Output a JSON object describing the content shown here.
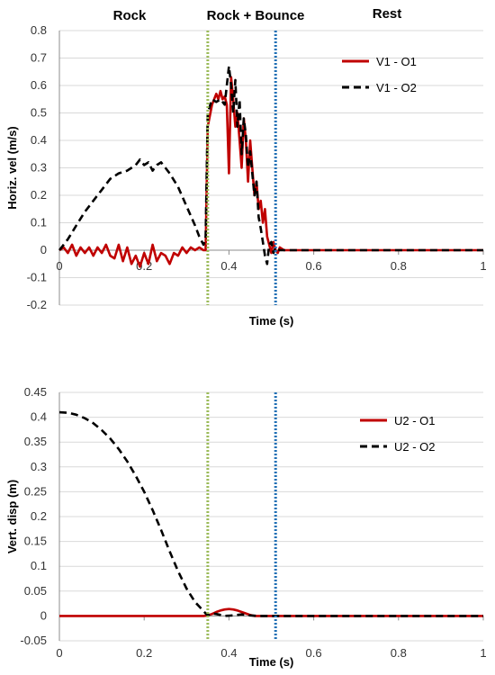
{
  "phase_labels": [
    "Rock",
    "Rock + Bounce",
    "Rest"
  ],
  "chart_data": [
    {
      "type": "line",
      "xlabel": "Time (s)",
      "ylabel": "Horiz. vel (m/s)",
      "xlim": [
        0,
        1
      ],
      "ylim": [
        -0.2,
        0.8
      ],
      "x_ticks": [
        "0",
        "0.2",
        "0.4",
        "0.6",
        "0.8",
        "1"
      ],
      "y_ticks": [
        "-0.2",
        "-0.1",
        "0",
        "0.1",
        "0.2",
        "0.3",
        "0.4",
        "0.5",
        "0.6",
        "0.7",
        "0.8"
      ],
      "grid": true,
      "legend": "top-right",
      "vertical_markers": [
        {
          "x": 0.35,
          "color": "#9bbb59"
        },
        {
          "x": 0.51,
          "color": "#1f6fb5"
        }
      ],
      "series": [
        {
          "name": "V1 - O1",
          "color": "#c00000",
          "dash": "solid",
          "points": [
            [
              0,
              0
            ],
            [
              0.01,
              0.01
            ],
            [
              0.02,
              -0.01
            ],
            [
              0.03,
              0.02
            ],
            [
              0.04,
              -0.02
            ],
            [
              0.05,
              0.01
            ],
            [
              0.06,
              -0.01
            ],
            [
              0.07,
              0.01
            ],
            [
              0.08,
              -0.02
            ],
            [
              0.09,
              0.01
            ],
            [
              0.1,
              -0.01
            ],
            [
              0.11,
              0.02
            ],
            [
              0.12,
              -0.02
            ],
            [
              0.13,
              -0.03
            ],
            [
              0.14,
              0.02
            ],
            [
              0.15,
              -0.04
            ],
            [
              0.16,
              0.01
            ],
            [
              0.17,
              -0.05
            ],
            [
              0.18,
              -0.02
            ],
            [
              0.19,
              -0.06
            ],
            [
              0.2,
              -0.01
            ],
            [
              0.21,
              -0.05
            ],
            [
              0.22,
              0.02
            ],
            [
              0.23,
              -0.04
            ],
            [
              0.24,
              -0.01
            ],
            [
              0.25,
              -0.02
            ],
            [
              0.26,
              -0.05
            ],
            [
              0.27,
              -0.01
            ],
            [
              0.28,
              -0.02
            ],
            [
              0.29,
              0.01
            ],
            [
              0.3,
              -0.01
            ],
            [
              0.31,
              0.01
            ],
            [
              0.32,
              0
            ],
            [
              0.33,
              0.01
            ],
            [
              0.34,
              0
            ],
            [
              0.345,
              0
            ],
            [
              0.35,
              0.45
            ],
            [
              0.36,
              0.53
            ],
            [
              0.37,
              0.57
            ],
            [
              0.375,
              0.55
            ],
            [
              0.38,
              0.58
            ],
            [
              0.385,
              0.55
            ],
            [
              0.39,
              0.56
            ],
            [
              0.395,
              0.53
            ],
            [
              0.4,
              0.28
            ],
            [
              0.405,
              0.63
            ],
            [
              0.41,
              0.55
            ],
            [
              0.415,
              0.45
            ],
            [
              0.42,
              0.5
            ],
            [
              0.425,
              0.4
            ],
            [
              0.43,
              0.3
            ],
            [
              0.435,
              0.48
            ],
            [
              0.44,
              0.4
            ],
            [
              0.445,
              0.25
            ],
            [
              0.45,
              0.4
            ],
            [
              0.455,
              0.3
            ],
            [
              0.46,
              0.2
            ],
            [
              0.465,
              0.25
            ],
            [
              0.47,
              0.15
            ],
            [
              0.475,
              0.18
            ],
            [
              0.48,
              0.1
            ],
            [
              0.485,
              0.15
            ],
            [
              0.49,
              0.05
            ],
            [
              0.5,
              -0.01
            ],
            [
              0.505,
              0.03
            ],
            [
              0.51,
              0
            ],
            [
              0.515,
              -0.01
            ],
            [
              0.52,
              0.01
            ],
            [
              0.53,
              0
            ],
            [
              1,
              0
            ]
          ]
        },
        {
          "name": "V1 - O2",
          "color": "#000000",
          "dash": "dashed",
          "points": [
            [
              0,
              0
            ],
            [
              0.02,
              0.04
            ],
            [
              0.04,
              0.09
            ],
            [
              0.06,
              0.14
            ],
            [
              0.08,
              0.18
            ],
            [
              0.1,
              0.22
            ],
            [
              0.12,
              0.26
            ],
            [
              0.14,
              0.28
            ],
            [
              0.16,
              0.29
            ],
            [
              0.18,
              0.31
            ],
            [
              0.19,
              0.33
            ],
            [
              0.2,
              0.31
            ],
            [
              0.21,
              0.32
            ],
            [
              0.22,
              0.29
            ],
            [
              0.23,
              0.31
            ],
            [
              0.24,
              0.32
            ],
            [
              0.25,
              0.3
            ],
            [
              0.26,
              0.28
            ],
            [
              0.28,
              0.23
            ],
            [
              0.3,
              0.16
            ],
            [
              0.32,
              0.09
            ],
            [
              0.33,
              0.05
            ],
            [
              0.34,
              0.02
            ],
            [
              0.345,
              0.05
            ],
            [
              0.35,
              0.5
            ],
            [
              0.36,
              0.55
            ],
            [
              0.37,
              0.54
            ],
            [
              0.38,
              0.55
            ],
            [
              0.39,
              0.53
            ],
            [
              0.395,
              0.6
            ],
            [
              0.4,
              0.67
            ],
            [
              0.405,
              0.6
            ],
            [
              0.41,
              0.5
            ],
            [
              0.415,
              0.62
            ],
            [
              0.42,
              0.45
            ],
            [
              0.425,
              0.55
            ],
            [
              0.43,
              0.35
            ],
            [
              0.435,
              0.48
            ],
            [
              0.44,
              0.42
            ],
            [
              0.445,
              0.3
            ],
            [
              0.45,
              0.36
            ],
            [
              0.455,
              0.28
            ],
            [
              0.46,
              0.2
            ],
            [
              0.465,
              0.25
            ],
            [
              0.47,
              0.12
            ],
            [
              0.475,
              0.08
            ],
            [
              0.48,
              0.03
            ],
            [
              0.485,
              -0.02
            ],
            [
              0.49,
              -0.05
            ],
            [
              0.495,
              0.02
            ],
            [
              0.5,
              0.03
            ],
            [
              0.505,
              -0.01
            ],
            [
              0.51,
              0.01
            ],
            [
              0.52,
              0
            ],
            [
              1,
              0
            ]
          ]
        }
      ]
    },
    {
      "type": "line",
      "xlabel": "Time (s)",
      "ylabel": "Vert. disp (m)",
      "xlim": [
        0,
        1
      ],
      "ylim": [
        -0.05,
        0.45
      ],
      "x_ticks": [
        "0",
        "0.2",
        "0.4",
        "0.6",
        "0.8",
        "1"
      ],
      "y_ticks": [
        "-0.05",
        "0",
        "0.05",
        "0.1",
        "0.15",
        "0.2",
        "0.25",
        "0.3",
        "0.35",
        "0.4",
        "0.45"
      ],
      "grid": true,
      "legend": "top-right",
      "vertical_markers": [
        {
          "x": 0.35,
          "color": "#9bbb59"
        },
        {
          "x": 0.51,
          "color": "#1f6fb5"
        }
      ],
      "series": [
        {
          "name": "U2 - O1",
          "color": "#c00000",
          "dash": "solid",
          "points": [
            [
              0,
              0
            ],
            [
              0.34,
              0
            ],
            [
              0.35,
              0.001
            ],
            [
              0.36,
              0.004
            ],
            [
              0.37,
              0.008
            ],
            [
              0.38,
              0.011
            ],
            [
              0.39,
              0.013
            ],
            [
              0.4,
              0.014
            ],
            [
              0.41,
              0.013
            ],
            [
              0.42,
              0.011
            ],
            [
              0.43,
              0.008
            ],
            [
              0.44,
              0.005
            ],
            [
              0.45,
              0.002
            ],
            [
              0.46,
              0
            ],
            [
              1,
              0
            ]
          ]
        },
        {
          "name": "U2 - O2",
          "color": "#000000",
          "dash": "dashed",
          "points": [
            [
              0,
              0.41
            ],
            [
              0.02,
              0.409
            ],
            [
              0.04,
              0.405
            ],
            [
              0.06,
              0.398
            ],
            [
              0.08,
              0.388
            ],
            [
              0.1,
              0.374
            ],
            [
              0.12,
              0.357
            ],
            [
              0.14,
              0.336
            ],
            [
              0.16,
              0.311
            ],
            [
              0.18,
              0.282
            ],
            [
              0.2,
              0.25
            ],
            [
              0.22,
              0.213
            ],
            [
              0.24,
              0.173
            ],
            [
              0.26,
              0.13
            ],
            [
              0.28,
              0.09
            ],
            [
              0.3,
              0.055
            ],
            [
              0.32,
              0.028
            ],
            [
              0.34,
              0.01
            ],
            [
              0.345,
              0.005
            ],
            [
              0.35,
              0.001
            ],
            [
              0.36,
              0.005
            ],
            [
              0.37,
              0.004
            ],
            [
              0.38,
              0.002
            ],
            [
              0.39,
              0
            ],
            [
              0.41,
              0.001
            ],
            [
              0.43,
              0.003
            ],
            [
              0.45,
              0.001
            ],
            [
              0.47,
              0
            ],
            [
              1,
              0
            ]
          ]
        }
      ]
    }
  ]
}
